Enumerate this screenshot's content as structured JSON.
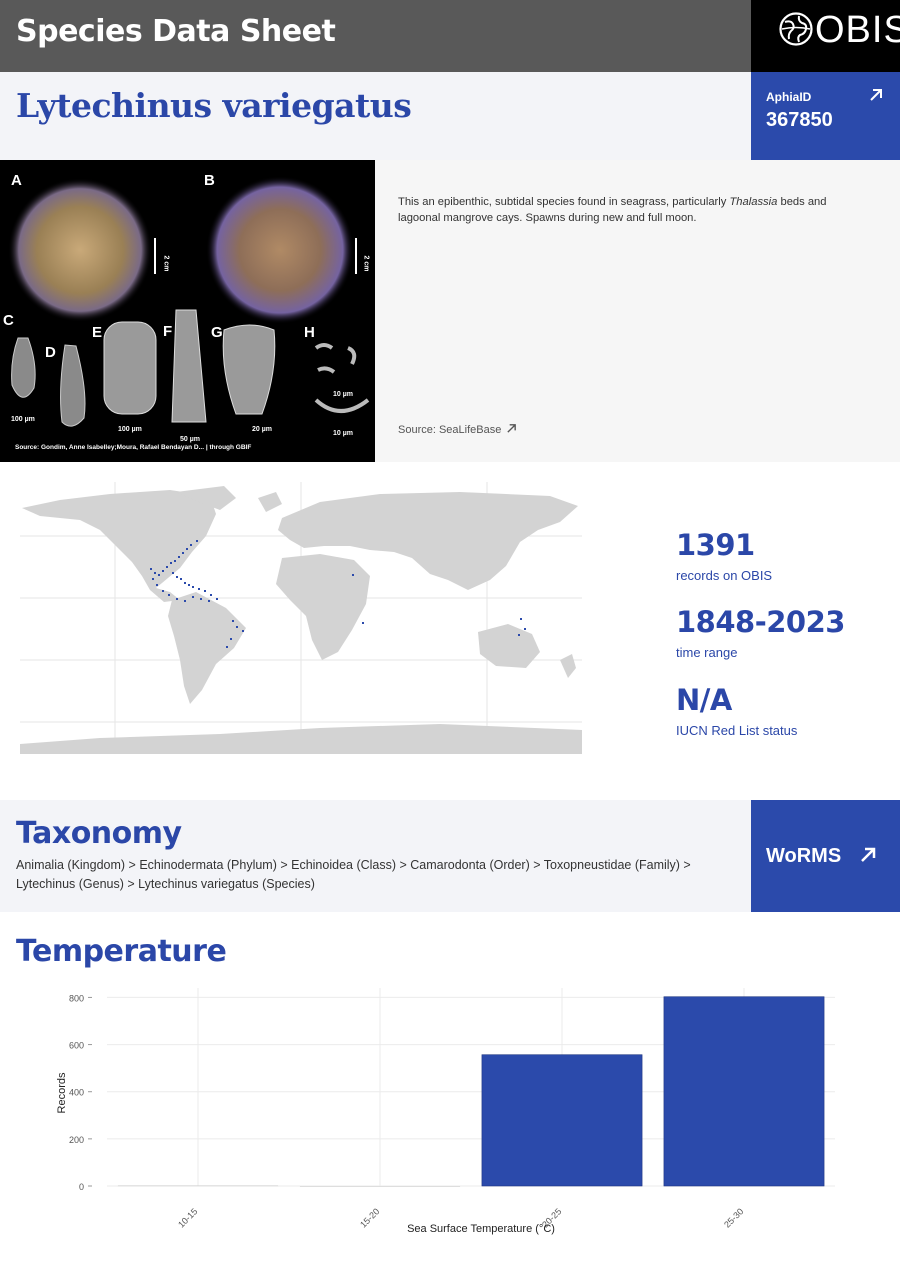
{
  "header": {
    "title": "Species Data Sheet",
    "logo_text": "OBIS"
  },
  "species": {
    "name": "Lytechinus variegatus"
  },
  "aphia": {
    "label": "AphiaID",
    "value": "367850"
  },
  "image": {
    "letters": [
      "A",
      "B",
      "C",
      "D",
      "E",
      "F",
      "G",
      "H"
    ],
    "scale_labels": [
      "2 cm",
      "2 cm",
      "100 µm",
      "100 µm",
      "50 µm",
      "20 µm",
      "10 µm",
      "10 µm"
    ],
    "source": "Source: Gondim, Anne Isabelley;Moura, Rafael Bendayan D... | through GBIF"
  },
  "description": {
    "before": "This an epibenthic, subtidal species found in seagrass, particularly ",
    "italic": "Thalassia",
    "after": " beds and lagoonal mangrove cays. Spawns during new and full moon.",
    "source": "Source: SeaLifeBase"
  },
  "stats": {
    "records": {
      "value": "1391",
      "label": "records on OBIS"
    },
    "time_range": {
      "value": "1848-2023",
      "label": "time range"
    },
    "iucn": {
      "value": "N/A",
      "label": "IUCN Red List status"
    }
  },
  "taxonomy": {
    "heading": "Taxonomy",
    "text": "Animalia (Kingdom) > Echinodermata (Phylum) > Echinoidea (Class) > Camarodonta (Order) > Toxopneustidae (Family) > Lytechinus (Genus) > Lytechinus variegatus (Species)",
    "worms_label": "WoRMS"
  },
  "temperature": {
    "heading": "Temperature"
  },
  "colors": {
    "accent": "#2b4aab",
    "header": "#595959",
    "band": "#f3f4f8",
    "map_land": "#d3d3d3",
    "occurrence": "#2b4aab"
  },
  "chart_data": {
    "type": "bar",
    "categories": [
      "10-15",
      "15-20",
      "20-25",
      "25-30"
    ],
    "values": [
      2,
      0,
      557,
      803
    ],
    "xlabel": "Sea Surface Temperature (°C)",
    "ylabel": "Records",
    "ylim": [
      0,
      840
    ],
    "yticks": [
      0,
      200,
      400,
      600,
      800
    ],
    "grid": true
  }
}
